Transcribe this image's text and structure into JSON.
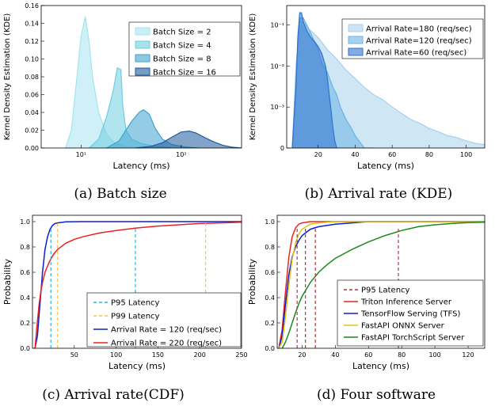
{
  "chart_data": [
    {
      "type": "area",
      "caption": "(a) Batch size",
      "xlabel": "Latency (ms)",
      "ylabel": "Kernel Density Estimation (KDE)",
      "xscale": "log",
      "xlim": [
        4,
        400
      ],
      "ylim": [
        0,
        0.16
      ],
      "yticks": [
        "0.00",
        "0.02",
        "0.04",
        "0.06",
        "0.08",
        "0.10",
        "0.12",
        "0.14",
        "0.16"
      ],
      "xticks": [
        {
          "v": 10,
          "label": "10¹"
        },
        {
          "v": 100,
          "label": "10²"
        }
      ],
      "legend": "top-right",
      "series": [
        {
          "name": "Batch Size = 2",
          "color": "#a6e3ef",
          "x": [
            7,
            8,
            9,
            10,
            11,
            12,
            13,
            15,
            18,
            22,
            30,
            45
          ],
          "y": [
            0,
            0.02,
            0.075,
            0.125,
            0.148,
            0.12,
            0.08,
            0.04,
            0.015,
            0.005,
            0.001,
            0
          ]
        },
        {
          "name": "Batch Size = 4",
          "color": "#6fcde0",
          "x": [
            12,
            15,
            18,
            21,
            23,
            25,
            26,
            28,
            32,
            40,
            55,
            80
          ],
          "y": [
            0,
            0.01,
            0.035,
            0.065,
            0.09,
            0.088,
            0.05,
            0.02,
            0.01,
            0.005,
            0.002,
            0
          ]
        },
        {
          "name": "Batch Size = 8",
          "color": "#3ea3cf",
          "x": [
            18,
            24,
            28,
            32,
            38,
            42,
            48,
            55,
            65,
            80,
            110,
            150
          ],
          "y": [
            0,
            0.008,
            0.02,
            0.03,
            0.04,
            0.043,
            0.038,
            0.022,
            0.01,
            0.004,
            0.001,
            0
          ]
        },
        {
          "name": "Batch Size = 16",
          "color": "#1c5a9c",
          "x": [
            35,
            50,
            65,
            80,
            100,
            120,
            140,
            170,
            210,
            260,
            320,
            400
          ],
          "y": [
            0,
            0.002,
            0.006,
            0.012,
            0.018,
            0.019,
            0.017,
            0.012,
            0.007,
            0.003,
            0.001,
            0
          ]
        }
      ]
    },
    {
      "type": "area",
      "caption": "(b) Arrival rate (KDE)",
      "xlabel": "Latency (ms)",
      "ylabel": "Kernel Density Estimation (KDE)",
      "yscale": "log",
      "xlim": [
        3,
        110
      ],
      "ylim": [
        0.0001,
        0.3
      ],
      "yticks": [
        {
          "v": 0.1,
          "label": "10⁻¹"
        },
        {
          "v": 0.01,
          "label": "10⁻²"
        },
        {
          "v": 0.001,
          "label": "10⁻³"
        },
        {
          "v": 0.0001,
          "label": "0"
        }
      ],
      "xticks": [
        20,
        40,
        60,
        80,
        100
      ],
      "legend": "top-right",
      "series": [
        {
          "name": "Arrival Rate=180 (req/sec)",
          "color": "#a8d1ec",
          "x": [
            6,
            8,
            10,
            12,
            15,
            20,
            25,
            30,
            35,
            40,
            45,
            50,
            55,
            60,
            65,
            70,
            75,
            80,
            85,
            90,
            95,
            100,
            105,
            110
          ],
          "y": [
            0.0001,
            0.01,
            0.12,
            0.12,
            0.08,
            0.05,
            0.025,
            0.015,
            0.008,
            0.005,
            0.003,
            0.002,
            0.0015,
            0.001,
            0.0007,
            0.0005,
            0.0004,
            0.0003,
            0.00025,
            0.0002,
            0.00018,
            0.00015,
            0.00013,
            0.00012
          ]
        },
        {
          "name": "Arrival Rate=120 (req/sec)",
          "color": "#6cb2e2",
          "x": [
            6,
            8,
            10,
            12,
            15,
            18,
            20,
            22,
            25,
            28,
            30,
            32,
            35,
            38,
            40,
            42,
            45,
            50
          ],
          "y": [
            0.0001,
            0.005,
            0.15,
            0.15,
            0.08,
            0.04,
            0.025,
            0.012,
            0.007,
            0.003,
            0.002,
            0.001,
            0.0005,
            0.0003,
            0.0002,
            0.00015,
            0.0001,
            0.0001
          ]
        },
        {
          "name": "Arrival Rate=60 (req/sec)",
          "color": "#2f72d0",
          "x": [
            6,
            8,
            9,
            10,
            11,
            12,
            14,
            16,
            18,
            20,
            22,
            24,
            25,
            26,
            27,
            28,
            29,
            30
          ],
          "y": [
            0.0001,
            0.003,
            0.05,
            0.2,
            0.2,
            0.12,
            0.07,
            0.05,
            0.04,
            0.03,
            0.02,
            0.01,
            0.005,
            0.002,
            0.0008,
            0.0003,
            0.00015,
            0.0001
          ]
        }
      ]
    },
    {
      "type": "line",
      "caption": "(c) Arrival rate(CDF)",
      "xlabel": "Latency (ms)",
      "ylabel": "Probability",
      "xlim": [
        0,
        250
      ],
      "ylim": [
        0,
        1.05
      ],
      "yticks": [
        {
          "v": 0,
          "label": "0.0"
        },
        {
          "v": 0.2,
          "label": "0.2"
        },
        {
          "v": 0.4,
          "label": "0.4"
        },
        {
          "v": 0.6,
          "label": "0.6"
        },
        {
          "v": 0.8,
          "label": "0.8"
        },
        {
          "v": 1,
          "label": "1.0"
        }
      ],
      "xticks": [
        50,
        100,
        150,
        200,
        250
      ],
      "legend": "bottom-right",
      "markers": [
        {
          "name": "P95 Latency",
          "color": "#26b6d6",
          "dash": "4,3",
          "x": [
            22,
            123
          ],
          "y": [
            0.95,
            0.95
          ]
        },
        {
          "name": "P99 Latency",
          "color": "#f4c64c",
          "dash": "4,3",
          "x": [
            30,
            207
          ],
          "y": [
            0.99,
            0.99
          ]
        }
      ],
      "series": [
        {
          "name": "Arrival Rate = 120 (req/sec)",
          "color": "#0b1ed8",
          "x": [
            3,
            6,
            9,
            12,
            15,
            18,
            21,
            24,
            27,
            30,
            40,
            60,
            250
          ],
          "y": [
            0,
            0.1,
            0.35,
            0.6,
            0.78,
            0.88,
            0.94,
            0.97,
            0.985,
            0.99,
            0.998,
            1,
            1
          ]
        },
        {
          "name": "Arrival Rate = 220 (req/sec)",
          "color": "#e8231f",
          "x": [
            3,
            5,
            8,
            10,
            12,
            15,
            20,
            25,
            30,
            40,
            50,
            60,
            80,
            100,
            125,
            150,
            175,
            200,
            225,
            250
          ],
          "y": [
            0,
            0.15,
            0.35,
            0.45,
            0.52,
            0.6,
            0.68,
            0.74,
            0.78,
            0.83,
            0.86,
            0.88,
            0.91,
            0.93,
            0.95,
            0.965,
            0.975,
            0.985,
            0.99,
            0.995
          ]
        }
      ]
    },
    {
      "type": "line",
      "caption": "(d) Four software",
      "xlabel": "Latency (ms)",
      "ylabel": "Probability",
      "xlim": [
        5,
        130
      ],
      "ylim": [
        0,
        1.05
      ],
      "yticks": [
        {
          "v": 0,
          "label": "0.0"
        },
        {
          "v": 0.2,
          "label": "0.2"
        },
        {
          "v": 0.4,
          "label": "0.4"
        },
        {
          "v": 0.6,
          "label": "0.6"
        },
        {
          "v": 0.8,
          "label": "0.8"
        },
        {
          "v": 1,
          "label": "1.0"
        }
      ],
      "xticks": [
        20,
        40,
        60,
        80,
        100,
        120
      ],
      "legend": "bottom-right",
      "markers": [
        {
          "name": "P95 Latency",
          "color": "#b2373e",
          "dash": "4,3",
          "x": [
            17,
            22,
            28,
            78
          ],
          "y": [
            0.95,
            0.95,
            0.95,
            0.95
          ]
        }
      ],
      "series": [
        {
          "name": "Triton Inference Server",
          "color": "#e8231f",
          "x": [
            6,
            8,
            10,
            12,
            14,
            16,
            18,
            20,
            25,
            30,
            130
          ],
          "y": [
            0,
            0.15,
            0.45,
            0.72,
            0.88,
            0.95,
            0.98,
            0.99,
            1,
            1,
            1
          ]
        },
        {
          "name": "TensorFlow Serving (TFS)",
          "color": "#0b1ed8",
          "x": [
            6,
            8,
            10,
            12,
            14,
            16,
            18,
            20,
            25,
            30,
            40,
            50,
            60,
            130
          ],
          "y": [
            0,
            0.1,
            0.35,
            0.58,
            0.72,
            0.8,
            0.85,
            0.89,
            0.94,
            0.96,
            0.98,
            0.99,
            1,
            1
          ]
        },
        {
          "name": "FastAPI ONNX Server",
          "color": "#e5c119",
          "x": [
            6,
            8,
            10,
            12,
            14,
            16,
            18,
            20,
            25,
            30,
            40,
            130
          ],
          "y": [
            0,
            0.05,
            0.25,
            0.5,
            0.7,
            0.83,
            0.9,
            0.94,
            0.98,
            0.99,
            1,
            1
          ]
        },
        {
          "name": "FastAPI TorchScript Server",
          "color": "#1a8a1a",
          "x": [
            8,
            10,
            12,
            14,
            16,
            18,
            20,
            25,
            30,
            35,
            40,
            50,
            60,
            70,
            80,
            90,
            100,
            110,
            120,
            130
          ],
          "y": [
            0,
            0.05,
            0.12,
            0.2,
            0.28,
            0.35,
            0.41,
            0.52,
            0.6,
            0.66,
            0.71,
            0.78,
            0.84,
            0.89,
            0.93,
            0.96,
            0.975,
            0.985,
            0.992,
            0.995
          ]
        }
      ]
    }
  ]
}
